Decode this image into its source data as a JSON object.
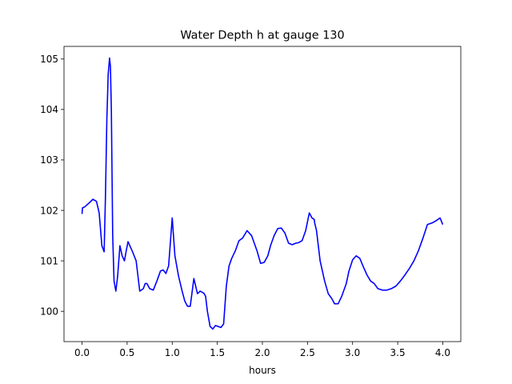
{
  "chart_data": {
    "type": "line",
    "title": "Water Depth h at gauge 130",
    "xlabel": "hours",
    "ylabel": "",
    "xlim": [
      -0.2,
      4.2
    ],
    "ylim": [
      99.4,
      105.25
    ],
    "xticks": [
      0.0,
      0.5,
      1.0,
      1.5,
      2.0,
      2.5,
      3.0,
      3.5,
      4.0
    ],
    "xtick_labels": [
      "0.0",
      "0.5",
      "1.0",
      "1.5",
      "2.0",
      "2.5",
      "3.0",
      "3.5",
      "4.0"
    ],
    "yticks": [
      100,
      101,
      102,
      103,
      104,
      105
    ],
    "ytick_labels": [
      "100",
      "101",
      "102",
      "103",
      "104",
      "105"
    ],
    "grid": false,
    "series": [
      {
        "color": "#0000ff",
        "x": [
          0.0,
          0.005,
          0.03,
          0.08,
          0.12,
          0.16,
          0.19,
          0.22,
          0.245,
          0.26,
          0.275,
          0.29,
          0.305,
          0.315,
          0.325,
          0.34,
          0.355,
          0.375,
          0.395,
          0.42,
          0.445,
          0.47,
          0.49,
          0.51,
          0.535,
          0.56,
          0.6,
          0.64,
          0.68,
          0.7,
          0.72,
          0.75,
          0.79,
          0.83,
          0.87,
          0.9,
          0.93,
          0.96,
          1.0,
          1.03,
          1.07,
          1.09,
          1.11,
          1.14,
          1.17,
          1.2,
          1.24,
          1.28,
          1.31,
          1.33,
          1.35,
          1.37,
          1.39,
          1.42,
          1.45,
          1.48,
          1.51,
          1.54,
          1.57,
          1.6,
          1.63,
          1.66,
          1.7,
          1.74,
          1.78,
          1.83,
          1.88,
          1.94,
          1.98,
          2.02,
          2.06,
          2.09,
          2.13,
          2.17,
          2.21,
          2.25,
          2.29,
          2.33,
          2.37,
          2.4,
          2.44,
          2.48,
          2.52,
          2.55,
          2.575,
          2.58,
          2.6,
          2.64,
          2.69,
          2.73,
          2.77,
          2.8,
          2.84,
          2.88,
          2.93,
          2.96,
          3.0,
          3.04,
          3.08,
          3.12,
          3.16,
          3.2,
          3.24,
          3.28,
          3.33,
          3.38,
          3.43,
          3.48,
          3.53,
          3.58,
          3.63,
          3.68,
          3.73,
          3.78,
          3.83,
          3.88,
          3.93,
          3.97,
          4.0
        ],
        "y": [
          101.93,
          102.05,
          102.07,
          102.15,
          102.22,
          102.18,
          101.95,
          101.3,
          101.18,
          102.3,
          103.8,
          104.7,
          105.02,
          104.85,
          104.0,
          101.5,
          100.6,
          100.4,
          100.7,
          101.3,
          101.1,
          101.0,
          101.2,
          101.38,
          101.28,
          101.18,
          101.0,
          100.4,
          100.45,
          100.55,
          100.55,
          100.45,
          100.42,
          100.6,
          100.8,
          100.82,
          100.75,
          100.9,
          101.85,
          101.1,
          100.7,
          100.55,
          100.4,
          100.2,
          100.1,
          100.1,
          100.65,
          100.35,
          100.4,
          100.38,
          100.36,
          100.3,
          100.0,
          99.7,
          99.65,
          99.72,
          99.7,
          99.68,
          99.75,
          100.5,
          100.9,
          101.05,
          101.2,
          101.4,
          101.45,
          101.6,
          101.5,
          101.2,
          100.95,
          100.97,
          101.1,
          101.3,
          101.5,
          101.64,
          101.65,
          101.55,
          101.35,
          101.32,
          101.35,
          101.36,
          101.4,
          101.6,
          101.95,
          101.85,
          101.82,
          101.75,
          101.6,
          101.0,
          100.6,
          100.35,
          100.25,
          100.15,
          100.15,
          100.3,
          100.55,
          100.8,
          101.02,
          101.1,
          101.05,
          100.88,
          100.72,
          100.6,
          100.55,
          100.45,
          100.42,
          100.42,
          100.45,
          100.5,
          100.6,
          100.72,
          100.85,
          101.0,
          101.2,
          101.45,
          101.72,
          101.75,
          101.8,
          101.85,
          101.72
        ]
      }
    ]
  }
}
